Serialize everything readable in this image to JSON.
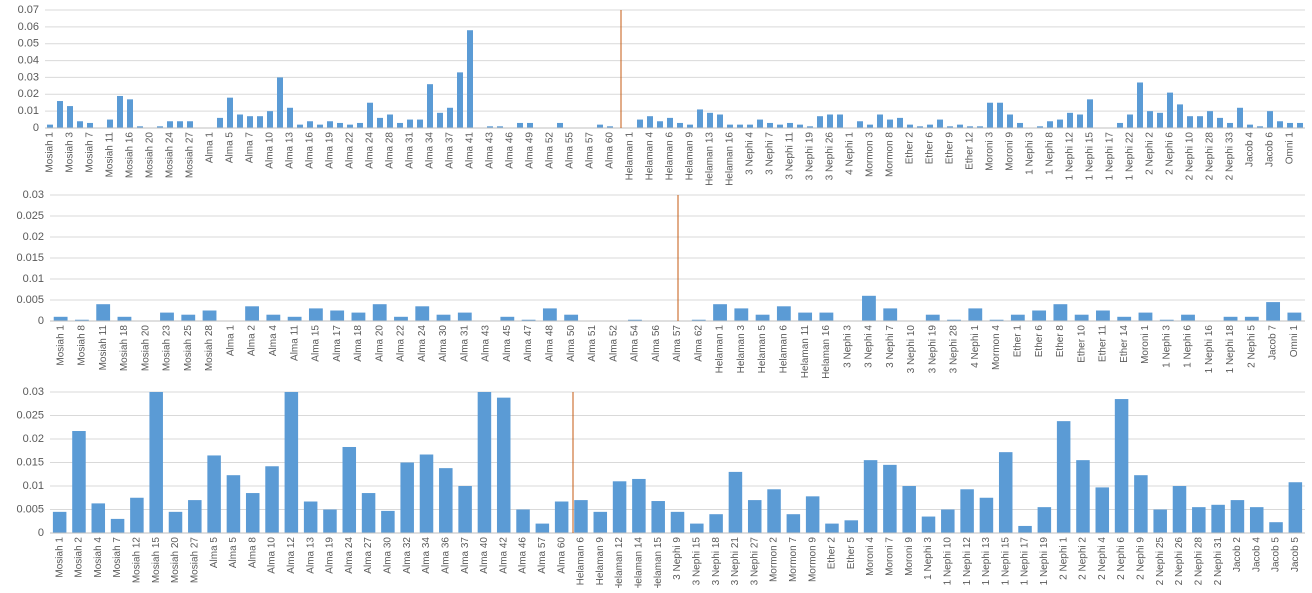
{
  "chart_data": [
    {
      "type": "bar",
      "color": "#5b9bd5",
      "grid": true,
      "ylim": [
        0,
        0.07
      ],
      "yticks": [
        0,
        0.01,
        0.02,
        0.03,
        0.04,
        0.05,
        0.06,
        0.07
      ],
      "categories": [
        "Mosiah 1",
        null,
        "Mosiah 3",
        null,
        "Mosiah 7",
        null,
        "Mosiah 11",
        null,
        "Mosiah 16",
        null,
        "Mosiah 20",
        null,
        "Mosiah 24",
        null,
        "Mosiah 27",
        null,
        "Alma 1",
        null,
        "Alma 5",
        null,
        "Alma 7",
        null,
        "Alma 10",
        null,
        "Alma 13",
        null,
        "Alma 16",
        null,
        "Alma 19",
        null,
        "Alma 22",
        null,
        "Alma 24",
        null,
        "Alma 28",
        null,
        "Alma 31",
        null,
        "Alma 34",
        null,
        "Alma 37",
        null,
        "Alma 41",
        null,
        "Alma 43",
        null,
        "Alma 46",
        null,
        "Alma 49",
        null,
        "Alma 52",
        null,
        "Alma 55",
        null,
        "Alma 57",
        null,
        "Alma 60",
        null,
        "Helaman 1",
        null,
        "Helaman 4",
        null,
        "Helaman 6",
        null,
        "Helaman 9",
        null,
        "Helaman 13",
        null,
        "Helaman 16",
        null,
        "3 Nephi 4",
        null,
        "3 Nephi 7",
        null,
        "3 Nephi 11",
        null,
        "3 Nephi 19",
        null,
        "3 Nephi 26",
        null,
        "4 Nephi 1",
        null,
        "Mormon 3",
        null,
        "Mormon 8",
        null,
        "Ether 2",
        null,
        "Ether 6",
        null,
        "Ether 9",
        null,
        "Ether 12",
        null,
        "Moroni 3",
        null,
        "Moroni 9",
        null,
        "1 Nephi 3",
        null,
        "1 Nephi 8",
        null,
        "1 Nephi 12",
        null,
        "1 Nephi 15",
        null,
        "1 Nephi 17",
        null,
        "1 Nephi 22",
        null,
        "2 Nephi 2",
        null,
        "2 Nephi 6",
        null,
        "2 Nephi 10",
        null,
        "2 Nephi 28",
        null,
        "2 Nephi 33",
        null,
        "Jacob 4",
        null,
        "Jacob 6",
        null,
        "Omni 1",
        null
      ],
      "values": [
        0.002,
        0.016,
        0.013,
        0.004,
        0.003,
        0,
        0.005,
        0.019,
        0.017,
        0.001,
        0,
        0.001,
        0.004,
        0.004,
        0.004,
        0,
        0,
        0.006,
        0.018,
        0.008,
        0.007,
        0.007,
        0.01,
        0.03,
        0.012,
        0.002,
        0.004,
        0.002,
        0.004,
        0.003,
        0.002,
        0.003,
        0.015,
        0.006,
        0.008,
        0.003,
        0.005,
        0.005,
        0.026,
        0.009,
        0.012,
        0.033,
        0.058,
        0,
        0.001,
        0.001,
        0,
        0.003,
        0.003,
        0,
        0,
        0.003,
        0,
        0,
        0,
        0.002,
        0.001,
        0,
        0,
        0.005,
        0.007,
        0.004,
        0.006,
        0.003,
        0.002,
        0.011,
        0.009,
        0.008,
        0.002,
        0.002,
        0.002,
        0.005,
        0.003,
        0.002,
        0.003,
        0.002,
        0.001,
        0.007,
        0.008,
        0.008,
        0,
        0.004,
        0.002,
        0.008,
        0.005,
        0.006,
        0.002,
        0.001,
        0.002,
        0.005,
        0.001,
        0.002,
        0.001,
        0.001,
        0.015,
        0.015,
        0.008,
        0.003,
        0,
        0.001,
        0.004,
        0.005,
        0.009,
        0.008,
        0.017,
        0,
        0,
        0.003,
        0.008,
        0.027,
        0.01,
        0.009,
        0.021,
        0.014,
        0.007,
        0.007,
        0.01,
        0.006,
        0.003,
        0.012,
        0.002,
        0.001,
        0.01,
        0.004,
        0.003,
        0.003
      ]
    },
    {
      "type": "bar",
      "color": "#5b9bd5",
      "grid": true,
      "ylim": [
        0,
        0.03
      ],
      "yticks": [
        0,
        0.005,
        0.01,
        0.015,
        0.02,
        0.025,
        0.03
      ],
      "categories": [
        "Mosiah 1",
        "Mosiah 8",
        "Mosiah 11",
        "Mosiah 18",
        "Mosiah 20",
        "Mosiah 23",
        "Mosiah 25",
        "Mosiah 28",
        "Alma 1",
        "Alma 2",
        "Alma 4",
        "Alma 11",
        "Alma 15",
        "Alma 17",
        "Alma 18",
        "Alma 20",
        "Alma 22",
        "Alma 24",
        "Alma 30",
        "Alma 31",
        "Alma 43",
        "Alma 45",
        "Alma 47",
        "Alma 48",
        "Alma 50",
        "Alma 51",
        "Alma 52",
        "Alma 54",
        "Alma 56",
        "Alma 57",
        "Alma 62",
        "Helaman 1",
        "Helaman 3",
        "Helaman 5",
        "Helaman 6",
        "Helaman 11",
        "Helaman 16",
        "3 Nephi 3",
        "3 Nephi 4",
        "3 Nephi 7",
        "3 Nephi 10",
        "3 Nephi 19",
        "3 Nephi 28",
        "4 Nephi 1",
        "Mormon 4",
        "Ether 1",
        "Ether 6",
        "Ether 8",
        "Ether 10",
        "Ether 11",
        "Ether 14",
        "Moroni 1",
        "1 Nephi 3",
        "1 Nephi 6",
        "1 Nephi 16",
        "1 Nephi 18",
        "2 Nephi 5",
        "Jacob 7",
        "Omni 1"
      ],
      "values": [
        0.001,
        0.0003,
        0.004,
        0.001,
        0,
        0.002,
        0.0015,
        0.0025,
        0,
        0.0035,
        0.0015,
        0.001,
        0.003,
        0.0025,
        0.002,
        0.004,
        0.001,
        0.0035,
        0.0015,
        0.002,
        0,
        0.001,
        0.0003,
        0.003,
        0.0015,
        0,
        0,
        0.0003,
        0,
        0,
        0.0003,
        0.004,
        0.003,
        0.0015,
        0.0035,
        0.002,
        0.002,
        0,
        0.006,
        0.003,
        0,
        0.0015,
        0.0003,
        0.003,
        0.0003,
        0.0015,
        0.0025,
        0.004,
        0.0015,
        0.0025,
        0.001,
        0.002,
        0.0003,
        0.0015,
        0,
        0.001,
        0.001,
        0.0045,
        0.002
      ]
    },
    {
      "type": "bar",
      "color": "#5b9bd5",
      "grid": true,
      "ylim": [
        0,
        0.03
      ],
      "yticks": [
        0,
        0.005,
        0.01,
        0.015,
        0.02,
        0.025,
        0.03
      ],
      "categories": [
        "Mosiah 1",
        "Mosiah 2",
        "Mosiah 4",
        "Mosiah 7",
        "Mosiah 12",
        "Mosiah 15",
        "Mosiah 20",
        "Mosiah 27",
        "Alma 5",
        "Alma 5",
        "Alma 8",
        "Alma 10",
        "Alma 12",
        "Alma 13",
        "Alma 19",
        "Alma 24",
        "Alma 27",
        "Alma 30",
        "Alma 32",
        "Alma 34",
        "Alma 36",
        "Alma 37",
        "Alma 40",
        "Alma 42",
        "Alma 46",
        "Alma 57",
        "Alma 60",
        "Helaman 6",
        "Helaman 9",
        "Helaman 12",
        "Helaman 14",
        "Helaman 15",
        "3 Nephi 9",
        "3 Nephi 15",
        "3 Nephi 18",
        "3 Nephi 21",
        "3 Nephi 27",
        "Mormon 2",
        "Mormon 7",
        "Mormon 9",
        "Ether 2",
        "Ether 5",
        "Moroni 4",
        "Moroni 7",
        "Moroni 9",
        "1 Nephi 3",
        "1 Nephi 10",
        "1 Nephi 12",
        "1 Nephi 13",
        "1 Nephi 15",
        "1 Nephi 17",
        "1 Nephi 19",
        "2 Nephi 1",
        "2 Nephi 2",
        "2 Nephi 4",
        "2 Nephi 6",
        "2 Nephi 9",
        "2 Nephi 25",
        "2 Nephi 26",
        "2 Nephi 28",
        "2 Nephi 31",
        "Jacob 2",
        "Jacob 4",
        "Jacob 5",
        "Jacob 5"
      ],
      "values": [
        0.0045,
        0.0217,
        0.0063,
        0.003,
        0.0075,
        0.03,
        0.0045,
        0.007,
        0.0165,
        0.0123,
        0.0085,
        0.0142,
        0.03,
        0.0067,
        0.005,
        0.0183,
        0.0085,
        0.0047,
        0.015,
        0.0167,
        0.0138,
        0.01,
        0.03,
        0.0288,
        0.005,
        0.002,
        0.0067,
        0.007,
        0.0045,
        0.011,
        0.0115,
        0.0068,
        0.0045,
        0.002,
        0.004,
        0.013,
        0.007,
        0.0093,
        0.004,
        0.0078,
        0.002,
        0.0027,
        0.0155,
        0.0145,
        0.01,
        0.0035,
        0.005,
        0.0093,
        0.0075,
        0.0172,
        0.0015,
        0.0055,
        0.0238,
        0.0155,
        0.0097,
        0.0285,
        0.0123,
        0.005,
        0.01,
        0.0055,
        0.006,
        0.007,
        0.0055,
        0.0023,
        0.0108
      ]
    }
  ]
}
